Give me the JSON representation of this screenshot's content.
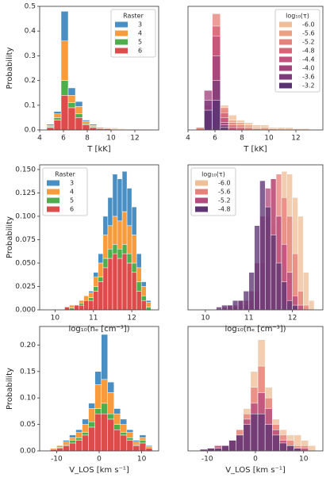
{
  "chart_data": [
    {
      "type": "histogram",
      "stacked": true,
      "xlabel": "T [kK]",
      "ylabel": "Probability",
      "bins": [
        4.6,
        5.2,
        5.8,
        6.4,
        7.0,
        7.6,
        8.2,
        8.8,
        9.4,
        10.0,
        10.6,
        11.2,
        11.8,
        12.4,
        13.0,
        13.6
      ],
      "xlim": [
        4,
        14
      ],
      "xticks": [
        4,
        6,
        8,
        10,
        12
      ],
      "ylim": [
        0,
        0.5
      ],
      "yticks": [
        {
          "value": 0,
          "label": "0.0"
        },
        0.1,
        0.2,
        0.3,
        0.4,
        0.5
      ],
      "legend": {
        "title": "Raster",
        "corner": "upper right"
      },
      "series": [
        {
          "name": "3",
          "color": "#4a8fc4",
          "values": [
            0.005,
            0.01,
            0.12,
            0.03,
            0.02,
            0.005,
            0.005,
            0,
            0,
            0.002,
            0,
            0,
            0,
            0,
            0.002
          ]
        },
        {
          "name": "4",
          "color": "#f89b3c",
          "values": [
            0.005,
            0.015,
            0.16,
            0.03,
            0.03,
            0.01,
            0.005,
            0.005,
            0.003,
            0.003,
            0.002,
            0.002,
            0,
            0,
            0
          ]
        },
        {
          "name": "5",
          "color": "#4caf4c",
          "values": [
            0.003,
            0.01,
            0.06,
            0.02,
            0.015,
            0.005,
            0.003,
            0,
            0,
            0,
            0,
            0,
            0,
            0,
            0
          ]
        },
        {
          "name": "6",
          "color": "#de4b4b",
          "values": [
            0.01,
            0.04,
            0.14,
            0.09,
            0.05,
            0.02,
            0.01,
            0.005,
            0.005,
            0.003,
            0.003,
            0.002,
            0.002,
            0.002,
            0
          ]
        }
      ]
    },
    {
      "type": "histogram",
      "stacked": false,
      "xlabel": "T [kK]",
      "bins": [
        4.6,
        5.2,
        5.8,
        6.4,
        7.0,
        7.6,
        8.2,
        8.8,
        9.4,
        10.0,
        10.6,
        11.2,
        11.8,
        12.4,
        13.0,
        13.6
      ],
      "xlim": [
        4,
        14
      ],
      "xticks": [
        4,
        6,
        8,
        10,
        12
      ],
      "ylim": [
        0,
        0.5
      ],
      "legend": {
        "title": "log₁₀(τ)",
        "corner": "upper right"
      },
      "series": [
        {
          "name": "-6.0",
          "color": "#efbf99",
          "values": [
            0.01,
            0.04,
            0.08,
            0.1,
            0.06,
            0.04,
            0.03,
            0.02,
            0.02,
            0.01,
            0.01,
            0.01,
            0.005,
            0.005,
            0
          ]
        },
        {
          "name": "-5.6",
          "color": "#eba084",
          "values": [
            0.01,
            0.05,
            0.1,
            0.08,
            0.04,
            0.03,
            0.02,
            0.01,
            0.01,
            0.005,
            0,
            0,
            0,
            0,
            0
          ]
        },
        {
          "name": "-5.2",
          "color": "#e5827a",
          "values": [
            0.01,
            0.06,
            0.47,
            0.09,
            0.03,
            0.02,
            0.01,
            0.005,
            0,
            0,
            0,
            0,
            0,
            0,
            0
          ]
        },
        {
          "name": "-4.8",
          "color": "#d96478",
          "values": [
            0,
            0.07,
            0.42,
            0.07,
            0.02,
            0.01,
            0,
            0,
            0,
            0,
            0,
            0,
            0,
            0,
            0
          ]
        },
        {
          "name": "-4.4",
          "color": "#c2517b",
          "values": [
            0,
            0.1,
            0.38,
            0.05,
            0.01,
            0,
            0,
            0,
            0,
            0,
            0,
            0,
            0,
            0,
            0
          ]
        },
        {
          "name": "-4.0",
          "color": "#a2447c",
          "values": [
            0,
            0.16,
            0.3,
            0.03,
            0,
            0,
            0,
            0,
            0,
            0,
            0,
            0,
            0,
            0,
            0
          ]
        },
        {
          "name": "-3.6",
          "color": "#7f3c7a",
          "values": [
            0,
            0.12,
            0.2,
            0.02,
            0,
            0,
            0,
            0,
            0,
            0,
            0,
            0,
            0,
            0,
            0
          ]
        },
        {
          "name": "-3.2",
          "color": "#593371",
          "values": [
            0,
            0.08,
            0.12,
            0.01,
            0,
            0,
            0,
            0,
            0,
            0,
            0,
            0,
            0,
            0,
            0
          ]
        }
      ]
    },
    {
      "type": "histogram",
      "stacked": true,
      "xlabel": "log₁₀(nₑ [cm⁻³])",
      "ylabel": "Probability",
      "bins": [
        10.25,
        10.375,
        10.5,
        10.625,
        10.75,
        10.875,
        11.0,
        11.125,
        11.25,
        11.375,
        11.5,
        11.625,
        11.75,
        11.875,
        12.0,
        12.125,
        12.25,
        12.375,
        12.5
      ],
      "xlim": [
        9.6,
        12.7
      ],
      "xticks": [
        10,
        11,
        12
      ],
      "ylim": [
        0,
        0.155
      ],
      "yticks": [
        {
          "value": 0,
          "label": "0.000"
        },
        {
          "value": 0.025,
          "label": "0.025"
        },
        {
          "value": 0.05,
          "label": "0.050"
        },
        {
          "value": 0.075,
          "label": "0.075"
        },
        {
          "value": 0.1,
          "label": "0.100"
        },
        {
          "value": 0.125,
          "label": "0.125"
        },
        {
          "value": 0.15,
          "label": "0.150"
        }
      ],
      "legend": {
        "title": "Raster",
        "corner": "upper left"
      },
      "series": [
        {
          "name": "3",
          "color": "#4a8fc4",
          "values": [
            0,
            0,
            0,
            0,
            0,
            0.002,
            0.005,
            0.01,
            0.02,
            0.03,
            0.045,
            0.045,
            0.043,
            0.04,
            0.03,
            0.015,
            0.005,
            0.002
          ]
        },
        {
          "name": "4",
          "color": "#f89b3c",
          "values": [
            0,
            0.003,
            0,
            0.003,
            0.005,
            0.005,
            0.01,
            0.015,
            0.025,
            0.025,
            0.03,
            0.03,
            0.035,
            0.03,
            0.03,
            0.015,
            0.01,
            0.005
          ]
        },
        {
          "name": "5",
          "color": "#4caf4c",
          "values": [
            0,
            0.002,
            0,
            0.002,
            0,
            0.003,
            0.005,
            0.005,
            0.01,
            0.01,
            0.01,
            0.01,
            0.01,
            0.01,
            0.01,
            0.01,
            0.005,
            0.003
          ]
        },
        {
          "name": "6",
          "color": "#de4b4b",
          "values": [
            0.003,
            0,
            0.005,
            0.005,
            0.01,
            0.01,
            0.02,
            0.03,
            0.045,
            0.055,
            0.06,
            0.055,
            0.06,
            0.05,
            0.04,
            0.02,
            0.01,
            0
          ]
        }
      ]
    },
    {
      "type": "histogram",
      "stacked": false,
      "xlabel": "log₁₀(nₑ [cm⁻³])",
      "bins": [
        10.25,
        10.375,
        10.5,
        10.625,
        10.75,
        10.875,
        11.0,
        11.125,
        11.25,
        11.375,
        11.5,
        11.625,
        11.75,
        11.875,
        12.0,
        12.125,
        12.25,
        12.375,
        12.5
      ],
      "xlim": [
        9.6,
        12.7
      ],
      "xticks": [
        10,
        11,
        12
      ],
      "ylim": [
        0,
        0.155
      ],
      "legend": {
        "title": "log₁₀(τ)",
        "corner": "upper left"
      },
      "series": [
        {
          "name": "-6.0",
          "color": "#efbf99",
          "values": [
            0,
            0,
            0,
            0,
            0,
            0,
            0.005,
            0.01,
            0.02,
            0.04,
            0.09,
            0.1,
            0.148,
            0.145,
            0.12,
            0.1,
            0.04,
            0.01
          ]
        },
        {
          "name": "-5.6",
          "color": "#e5827a",
          "values": [
            0,
            0,
            0,
            0.003,
            0.005,
            0.005,
            0.01,
            0.02,
            0.05,
            0.1,
            0.14,
            0.145,
            0.12,
            0.1,
            0.06,
            0.02,
            0.005,
            0
          ]
        },
        {
          "name": "-5.2",
          "color": "#b74a7e",
          "values": [
            0,
            0.003,
            0.005,
            0.005,
            0.01,
            0.01,
            0.02,
            0.05,
            0.1,
            0.13,
            0.14,
            0.1,
            0.07,
            0.04,
            0.015,
            0.005,
            0,
            0
          ]
        },
        {
          "name": "-4.8",
          "color": "#5e3473",
          "values": [
            0.003,
            0.005,
            0.005,
            0.01,
            0.01,
            0.02,
            0.04,
            0.09,
            0.138,
            0.11,
            0.08,
            0.05,
            0.03,
            0.01,
            0.005,
            0,
            0,
            0
          ]
        }
      ]
    },
    {
      "type": "histogram",
      "stacked": true,
      "xlabel": "V_LOS [km s⁻¹]",
      "ylabel": "Probability",
      "bins": [
        -11.5,
        -10,
        -8.5,
        -7,
        -5.5,
        -4,
        -2.5,
        -1,
        0.5,
        2,
        3.5,
        5,
        6.5,
        8,
        9.5,
        11,
        12.5
      ],
      "xlim": [
        -14,
        14
      ],
      "xticks": [
        -10,
        0,
        10
      ],
      "ylim": [
        0,
        0.235
      ],
      "yticks": [
        {
          "value": 0,
          "label": "0.00"
        },
        0.05,
        {
          "value": 0.1,
          "label": "0.10"
        },
        0.15,
        {
          "value": 0.2,
          "label": "0.20"
        }
      ],
      "series": [
        {
          "color": "#4a8fc4",
          "values": [
            0,
            0,
            0.003,
            0.005,
            0.005,
            0.01,
            0.01,
            0.025,
            0.085,
            0.02,
            0.01,
            0.01,
            0.005,
            0.003,
            0.005,
            0.002
          ]
        },
        {
          "color": "#f89b3c",
          "values": [
            0.002,
            0.003,
            0.005,
            0.005,
            0.01,
            0.015,
            0.025,
            0.045,
            0.045,
            0.04,
            0.02,
            0.015,
            0.01,
            0.005,
            0.005,
            0.003
          ]
        },
        {
          "color": "#4caf4c",
          "values": [
            0,
            0.002,
            0.002,
            0.005,
            0.005,
            0.005,
            0.01,
            0.01,
            0.02,
            0.01,
            0.01,
            0.005,
            0.005,
            0.002,
            0.005,
            0
          ]
        },
        {
          "color": "#de4b4b",
          "values": [
            0.003,
            0.005,
            0.01,
            0.015,
            0.02,
            0.03,
            0.045,
            0.07,
            0.07,
            0.06,
            0.04,
            0.03,
            0.02,
            0.01,
            0.015,
            0.005
          ]
        }
      ]
    },
    {
      "type": "histogram",
      "stacked": false,
      "xlabel": "V_LOS [km s⁻¹]",
      "bins": [
        -11.5,
        -10,
        -8.5,
        -7,
        -5.5,
        -4,
        -2.5,
        -1,
        0.5,
        2,
        3.5,
        5,
        6.5,
        8,
        9.5,
        11,
        12.5
      ],
      "xlim": [
        -14,
        14
      ],
      "xticks": [
        -10,
        0,
        10
      ],
      "ylim": [
        0,
        0.235
      ],
      "series": [
        {
          "color": "#efbf99",
          "values": [
            0,
            0.005,
            0.01,
            0.01,
            0.02,
            0.04,
            0.08,
            0.15,
            0.21,
            0.12,
            0.06,
            0.04,
            0.03,
            0.03,
            0.02,
            0.01
          ]
        },
        {
          "color": "#e5827a",
          "values": [
            0,
            0.005,
            0.005,
            0.01,
            0.02,
            0.04,
            0.07,
            0.12,
            0.16,
            0.1,
            0.05,
            0.03,
            0.02,
            0.01,
            0.01,
            0
          ]
        },
        {
          "color": "#b74a7e",
          "values": [
            0.003,
            0.005,
            0.01,
            0.01,
            0.02,
            0.03,
            0.06,
            0.09,
            0.11,
            0.08,
            0.04,
            0.02,
            0.01,
            0.005,
            0.005,
            0
          ]
        },
        {
          "color": "#5e3473",
          "values": [
            0.003,
            0.005,
            0.005,
            0.01,
            0.02,
            0.03,
            0.05,
            0.07,
            0.07,
            0.05,
            0.03,
            0.015,
            0.01,
            0.005,
            0,
            0
          ]
        }
      ]
    }
  ]
}
